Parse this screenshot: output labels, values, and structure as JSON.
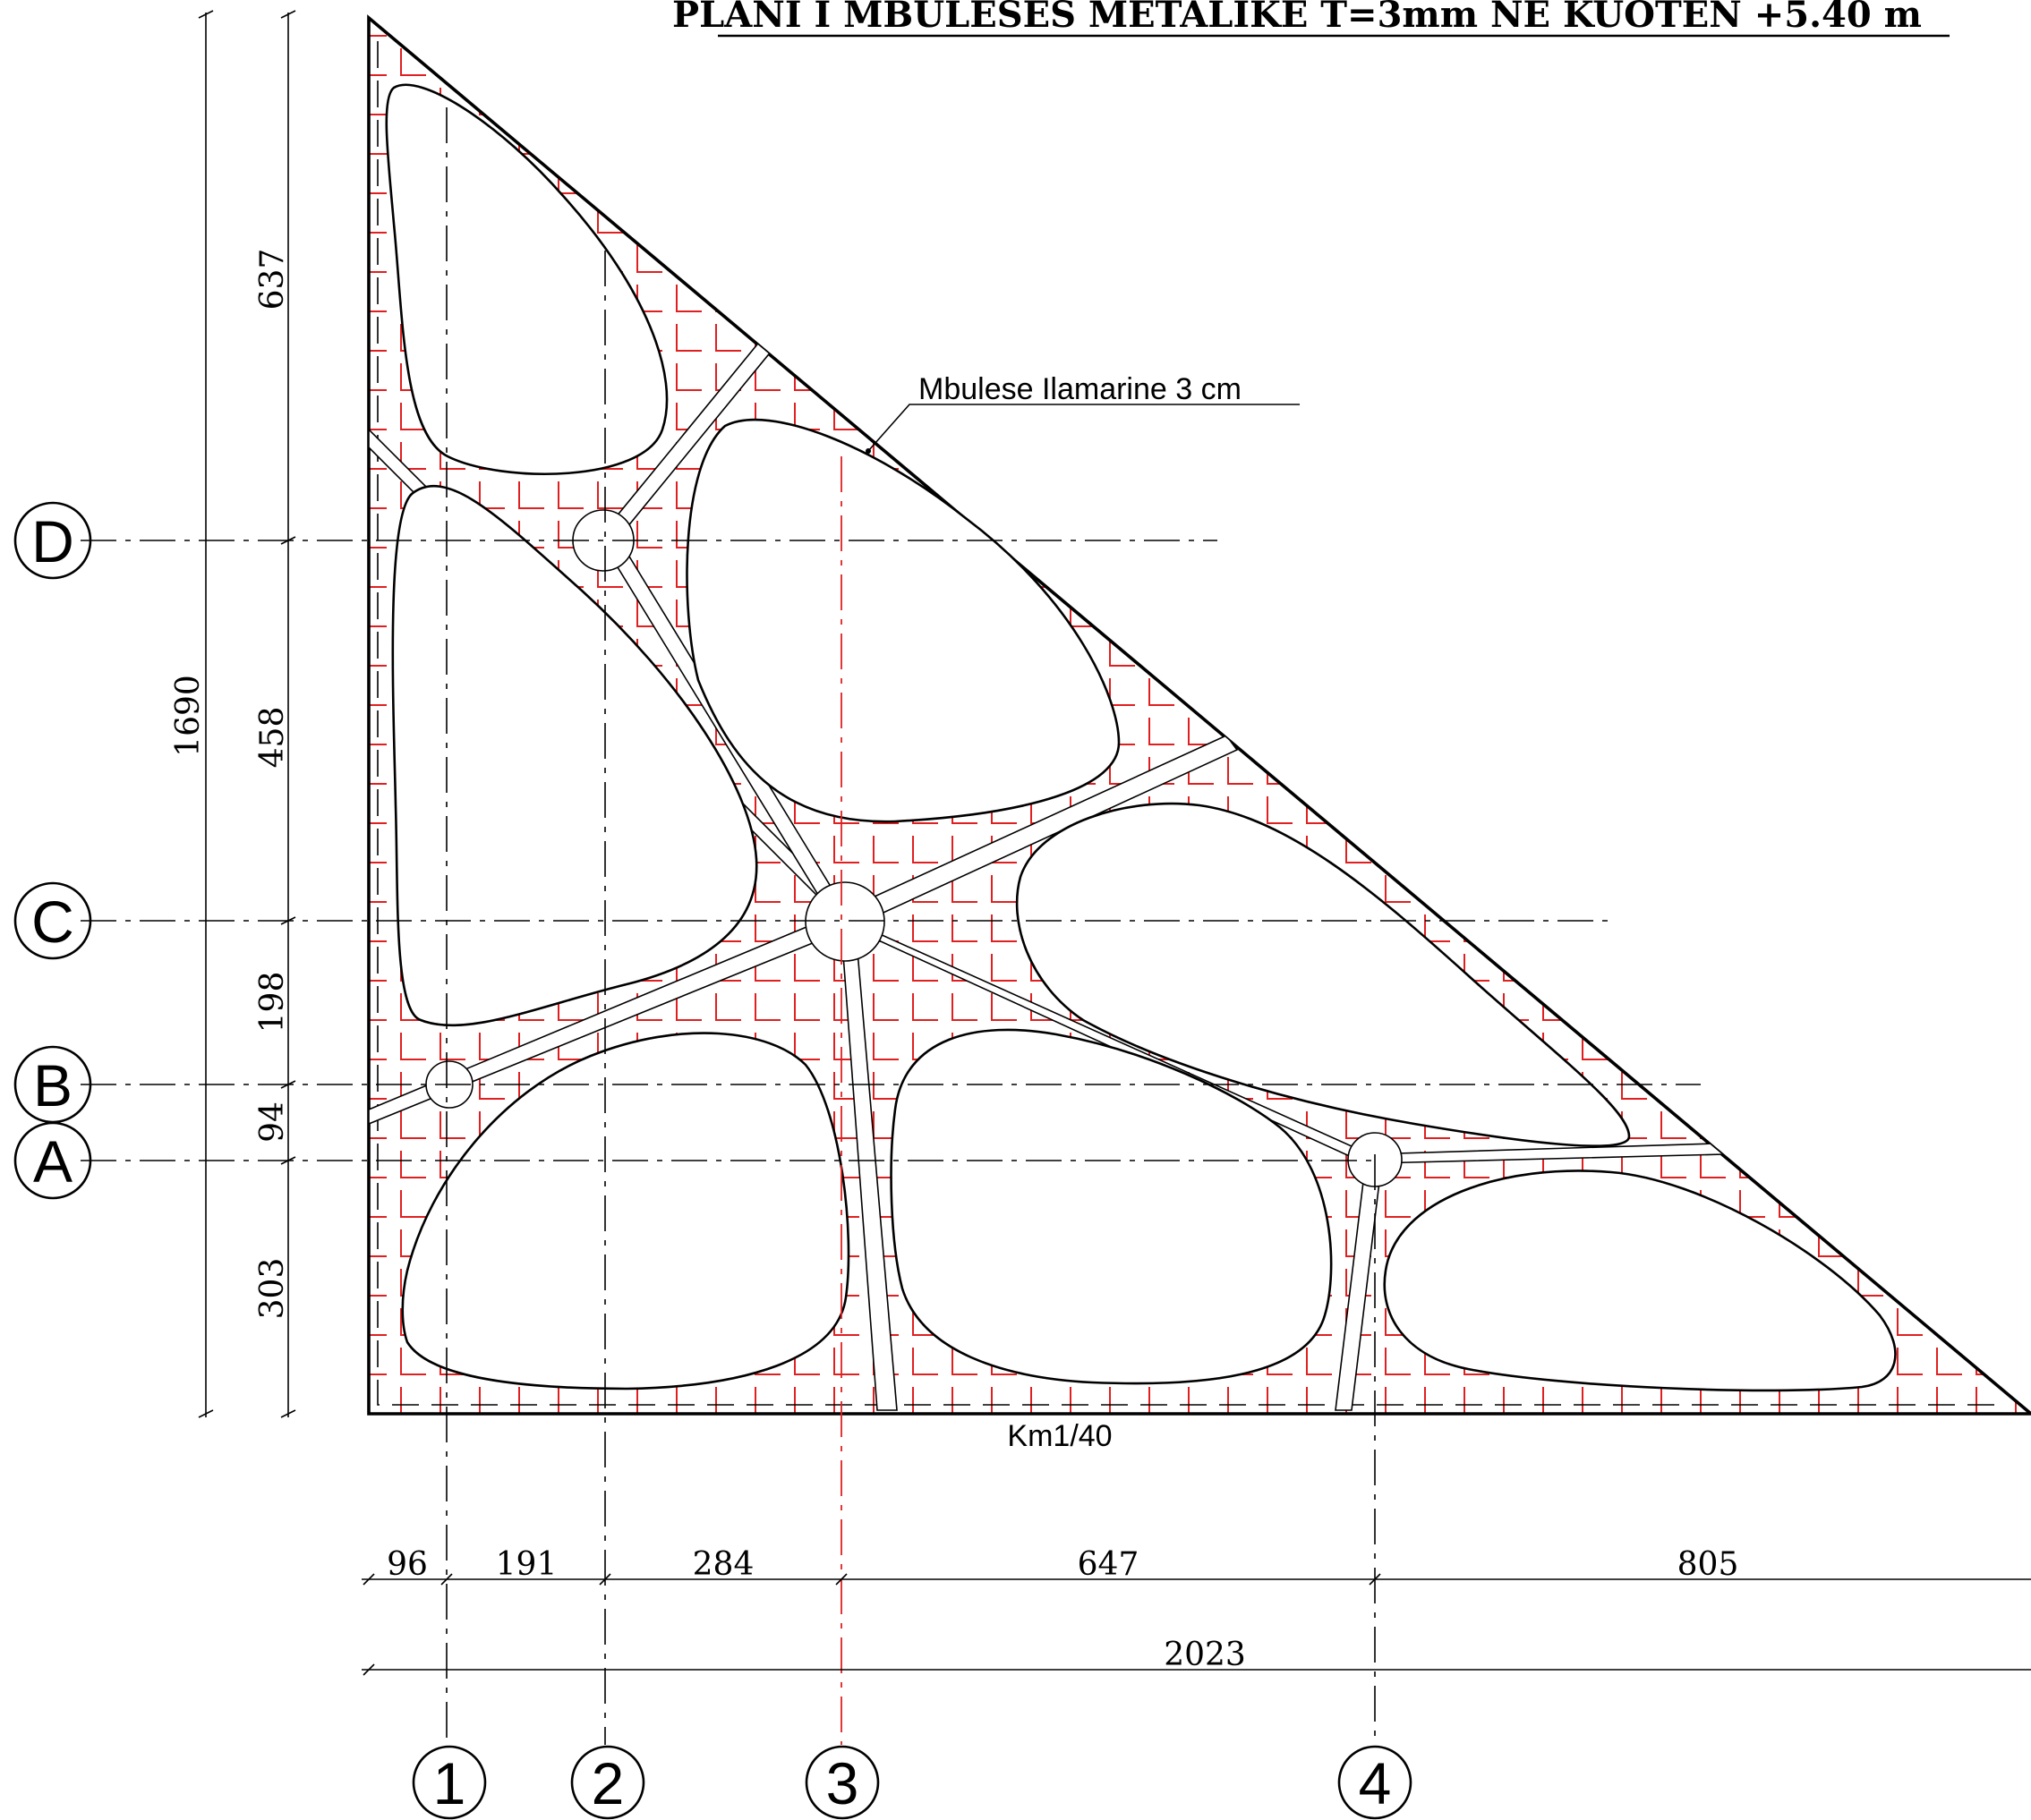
{
  "title": "PLANI I MBULESES METALIKE T=3mm  NE KUOTEN +5.40 m",
  "material_label": "Mbulese Ilamarine 3 cm",
  "scale_label": "Km1/40",
  "axes_horizontal": [
    "D",
    "C",
    "B",
    "A"
  ],
  "axes_vertical": [
    "1",
    "2",
    "3",
    "4"
  ],
  "dimensions_vertical": {
    "total": "1690",
    "segments": [
      "637",
      "458",
      "198",
      "94",
      "303"
    ]
  },
  "dimensions_horizontal": {
    "total": "2023",
    "segments": [
      "96",
      "191",
      "284",
      "647",
      "805"
    ]
  },
  "colors": {
    "hatch": "#e02020",
    "lines": "#000000",
    "background": "#ffffff"
  }
}
